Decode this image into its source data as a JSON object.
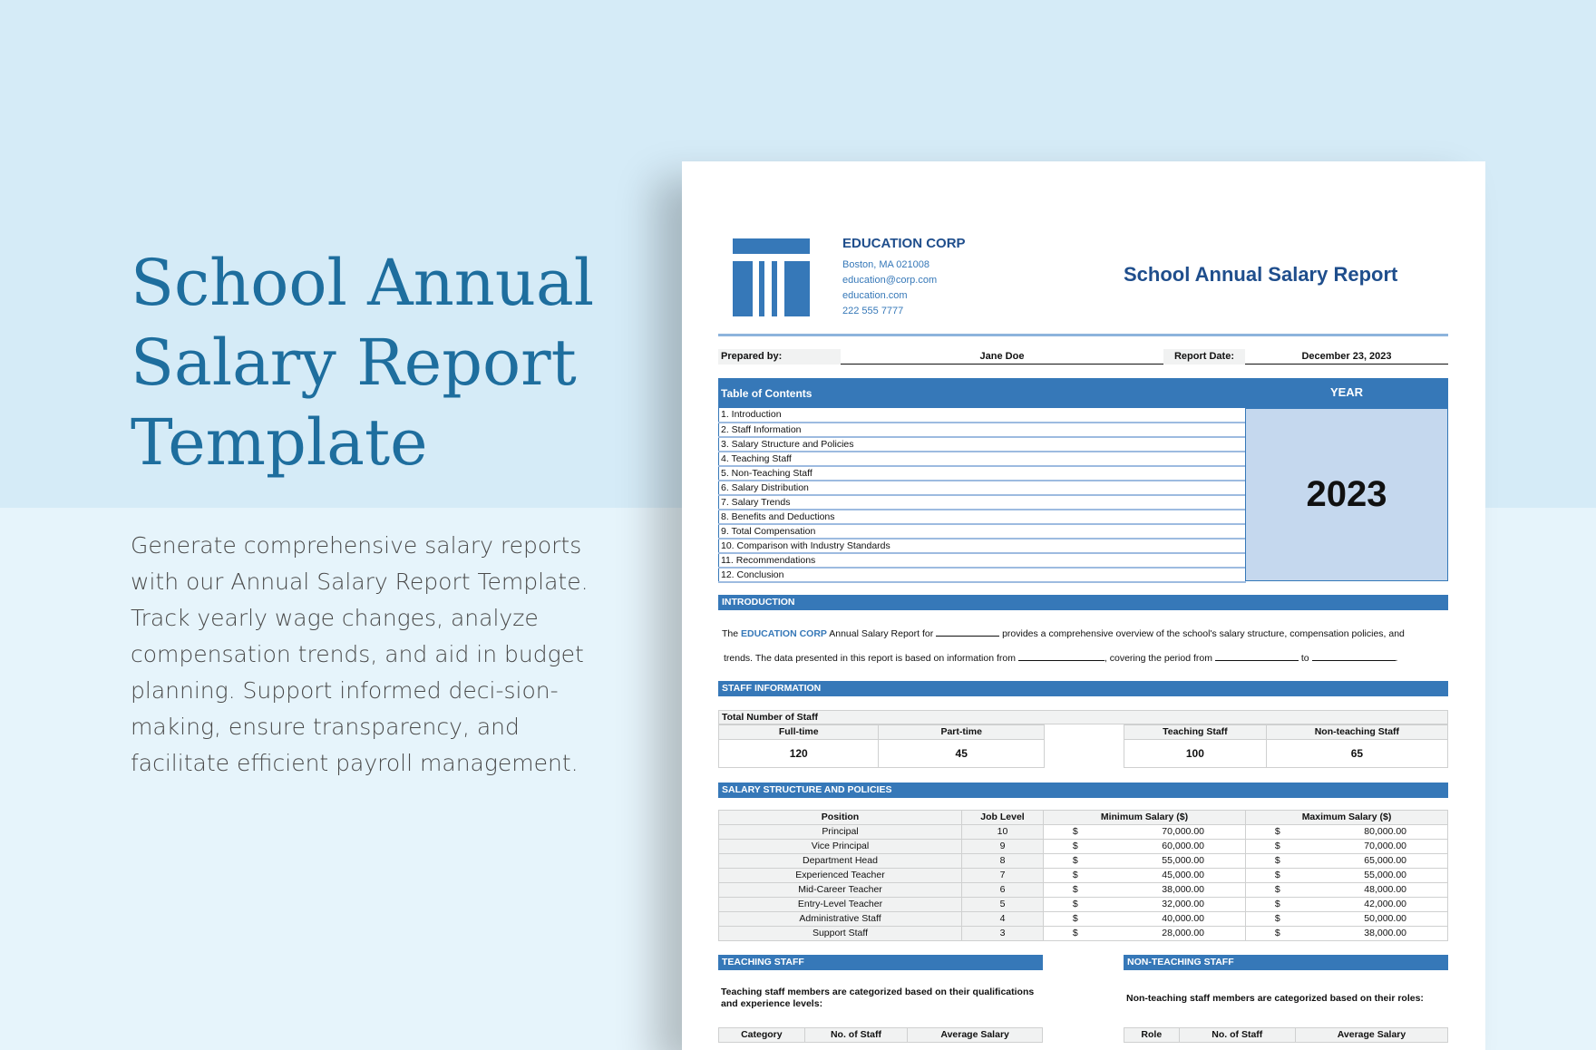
{
  "hero": {
    "title": "School Annual Salary Report Template",
    "description": "Generate comprehensive salary reports with our Annual Salary Report Template. Track yearly wage changes, analyze compensation trends, and aid in budget planning. Support informed deci-sion-making, ensure transparency, and facilitate efficient payroll management."
  },
  "company": {
    "name": "EDUCATION CORP",
    "address": "Boston, MA 021008",
    "email": "education@corp.com",
    "website": "education.com",
    "phone": "222 555 7777"
  },
  "report": {
    "title": "School Annual Salary Report",
    "prepared_label": "Prepared by:",
    "prepared_by": "Jane Doe",
    "date_label": "Report Date:",
    "date": "December 23, 2023"
  },
  "toc": {
    "header": "Table of Contents",
    "year_header": "YEAR",
    "year": "2023",
    "items": [
      "1. Introduction",
      "2. Staff Information",
      "3. Salary Structure and Policies",
      "4. Teaching Staff",
      "5. Non-Teaching Staff",
      "6. Salary Distribution",
      "7. Salary Trends",
      "8. Benefits and Deductions",
      "9. Total Compensation",
      "10. Comparison with Industry Standards",
      "11. Recommendations",
      "12. Conclusion"
    ]
  },
  "intro": {
    "header": "INTRODUCTION",
    "the": "The",
    "corp": "EDUCATION CORP",
    "t1": "Annual Salary Report for",
    "t2": "provides a comprehensive overview of the school's salary structure, compensation policies, and",
    "t3": "trends. The data presented in this report is based on information from",
    "t4": ", covering the period from",
    "t5": "to",
    "t6": "."
  },
  "staff": {
    "header": "STAFF INFORMATION",
    "total_label": "Total Number of Staff",
    "cols": [
      "Full-time",
      "Part-time",
      "Teaching Staff",
      "Non-teaching Staff"
    ],
    "values": [
      "120",
      "45",
      "100",
      "65"
    ]
  },
  "salary": {
    "header": "SALARY STRUCTURE AND POLICIES",
    "cols": [
      "Position",
      "Job Level",
      "Minimum Salary ($)",
      "Maximum Salary ($)"
    ],
    "currency": "$",
    "rows": [
      [
        "Principal",
        "10",
        "70,000.00",
        "80,000.00"
      ],
      [
        "Vice Principal",
        "9",
        "60,000.00",
        "70,000.00"
      ],
      [
        "Department Head",
        "8",
        "55,000.00",
        "65,000.00"
      ],
      [
        "Experienced Teacher",
        "7",
        "45,000.00",
        "55,000.00"
      ],
      [
        "Mid-Career Teacher",
        "6",
        "38,000.00",
        "48,000.00"
      ],
      [
        "Entry-Level Teacher",
        "5",
        "32,000.00",
        "42,000.00"
      ],
      [
        "Administrative Staff",
        "4",
        "40,000.00",
        "50,000.00"
      ],
      [
        "Support Staff",
        "3",
        "28,000.00",
        "38,000.00"
      ]
    ]
  },
  "teaching": {
    "header": "TEACHING STAFF",
    "text": "Teaching staff members are categorized based on their qualifications and experience levels:",
    "cols": [
      "Category",
      "No. of Staff",
      "Average Salary"
    ]
  },
  "nonteaching": {
    "header": "NON-TEACHING STAFF",
    "text": "Non-teaching staff members are categorized based on their roles:",
    "cols": [
      "Role",
      "No. of Staff",
      "Average Salary"
    ]
  },
  "colors": {
    "accent": "#3678b8",
    "title": "#1f4e8c",
    "year_bg": "#c5d8ee"
  }
}
